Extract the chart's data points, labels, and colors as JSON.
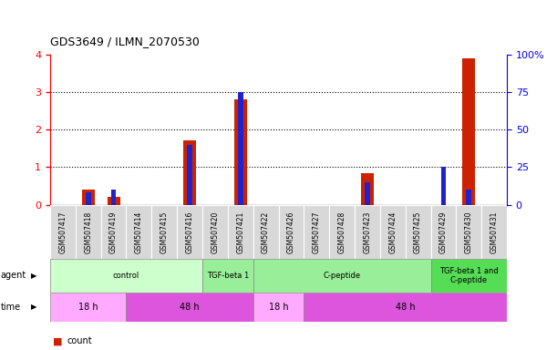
{
  "title": "GDS3649 / ILMN_2070530",
  "samples": [
    "GSM507417",
    "GSM507418",
    "GSM507419",
    "GSM507414",
    "GSM507415",
    "GSM507416",
    "GSM507420",
    "GSM507421",
    "GSM507422",
    "GSM507426",
    "GSM507427",
    "GSM507428",
    "GSM507423",
    "GSM507424",
    "GSM507425",
    "GSM507429",
    "GSM507430",
    "GSM507431"
  ],
  "count_values": [
    0,
    0.4,
    0.2,
    0,
    0,
    1.72,
    0,
    2.8,
    0,
    0,
    0,
    0,
    0.85,
    0,
    0,
    0,
    3.9,
    0
  ],
  "percentile_values": [
    0,
    0.08,
    0.1,
    0,
    0,
    0.4,
    0,
    0.75,
    0,
    0,
    0,
    0,
    0.15,
    0,
    0,
    0.25,
    0.1,
    0
  ],
  "ylim_left": [
    0,
    4
  ],
  "ylim_right": [
    0,
    100
  ],
  "yticks_left": [
    0,
    1,
    2,
    3,
    4
  ],
  "yticks_right": [
    0,
    25,
    50,
    75,
    100
  ],
  "color_count": "#cc2200",
  "color_percentile": "#2222cc",
  "agent_groups": [
    {
      "label": "control",
      "start": 0,
      "end": 6,
      "color": "#ccffcc"
    },
    {
      "label": "TGF-beta 1",
      "start": 6,
      "end": 8,
      "color": "#99ee99"
    },
    {
      "label": "C-peptide",
      "start": 8,
      "end": 15,
      "color": "#99ee99"
    },
    {
      "label": "TGF-beta 1 and\nC-peptide",
      "start": 15,
      "end": 18,
      "color": "#55dd55"
    }
  ],
  "time_groups": [
    {
      "label": "18 h",
      "start": 0,
      "end": 3,
      "color": "#ffaaff"
    },
    {
      "label": "48 h",
      "start": 3,
      "end": 8,
      "color": "#dd55dd"
    },
    {
      "label": "18 h",
      "start": 8,
      "end": 10,
      "color": "#ffaaff"
    },
    {
      "label": "48 h",
      "start": 10,
      "end": 18,
      "color": "#dd55dd"
    }
  ]
}
